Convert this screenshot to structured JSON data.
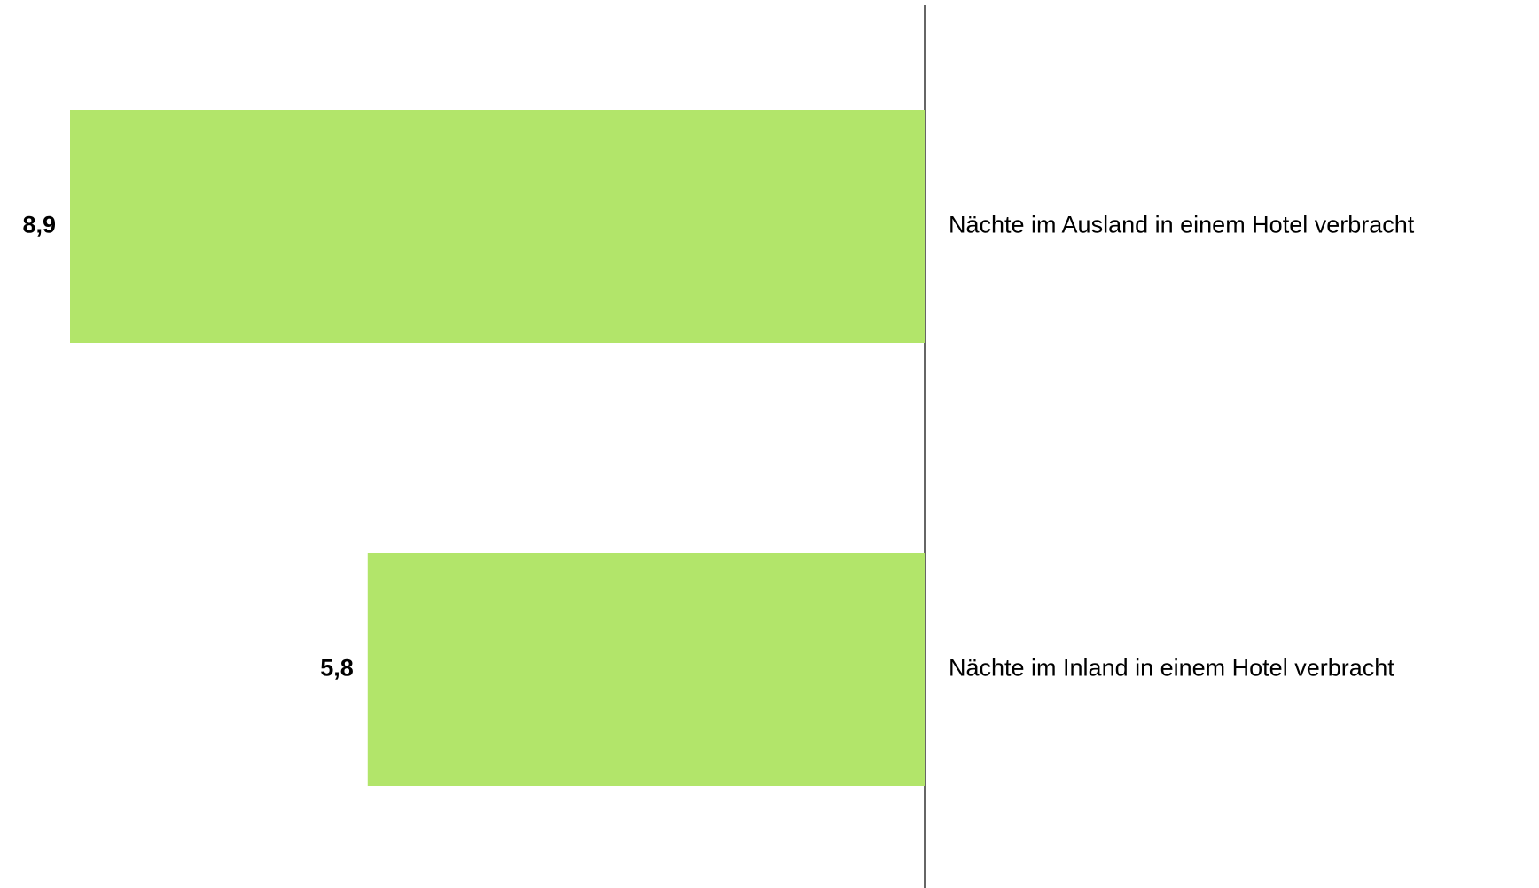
{
  "chart_data": {
    "type": "bar",
    "orientation": "horizontal",
    "categories": [
      "Nächte im Ausland in einem Hotel verbracht",
      "Nächte im Inland in einem Hotel verbracht"
    ],
    "values": [
      8.9,
      5.8
    ],
    "value_labels": [
      "8,9",
      "5,8"
    ],
    "color": "#b2e56a"
  }
}
